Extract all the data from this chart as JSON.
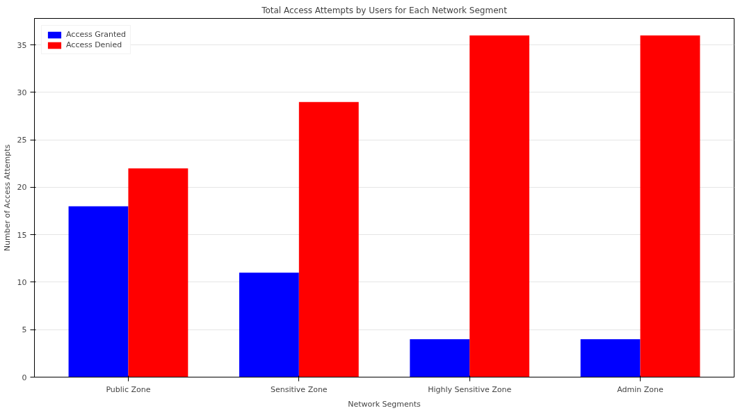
{
  "chart_data": {
    "type": "bar",
    "title": "Total Access Attempts by Users for Each Network Segment",
    "xlabel": "Network Segments",
    "ylabel": "Number of Access Attempts",
    "categories": [
      "Public Zone",
      "Sensitive Zone",
      "Highly Sensitive Zone",
      "Admin Zone"
    ],
    "series": [
      {
        "name": "Access Granted",
        "color": "#0000ff",
        "values": [
          18,
          11,
          4,
          4
        ]
      },
      {
        "name": "Access Denied",
        "color": "#ff0000",
        "values": [
          22,
          29,
          36,
          36
        ]
      }
    ],
    "ylim": [
      0,
      37.8
    ],
    "yticks": [
      0,
      5,
      10,
      15,
      20,
      25,
      30,
      35
    ],
    "grid": "y",
    "legend": "top left"
  }
}
